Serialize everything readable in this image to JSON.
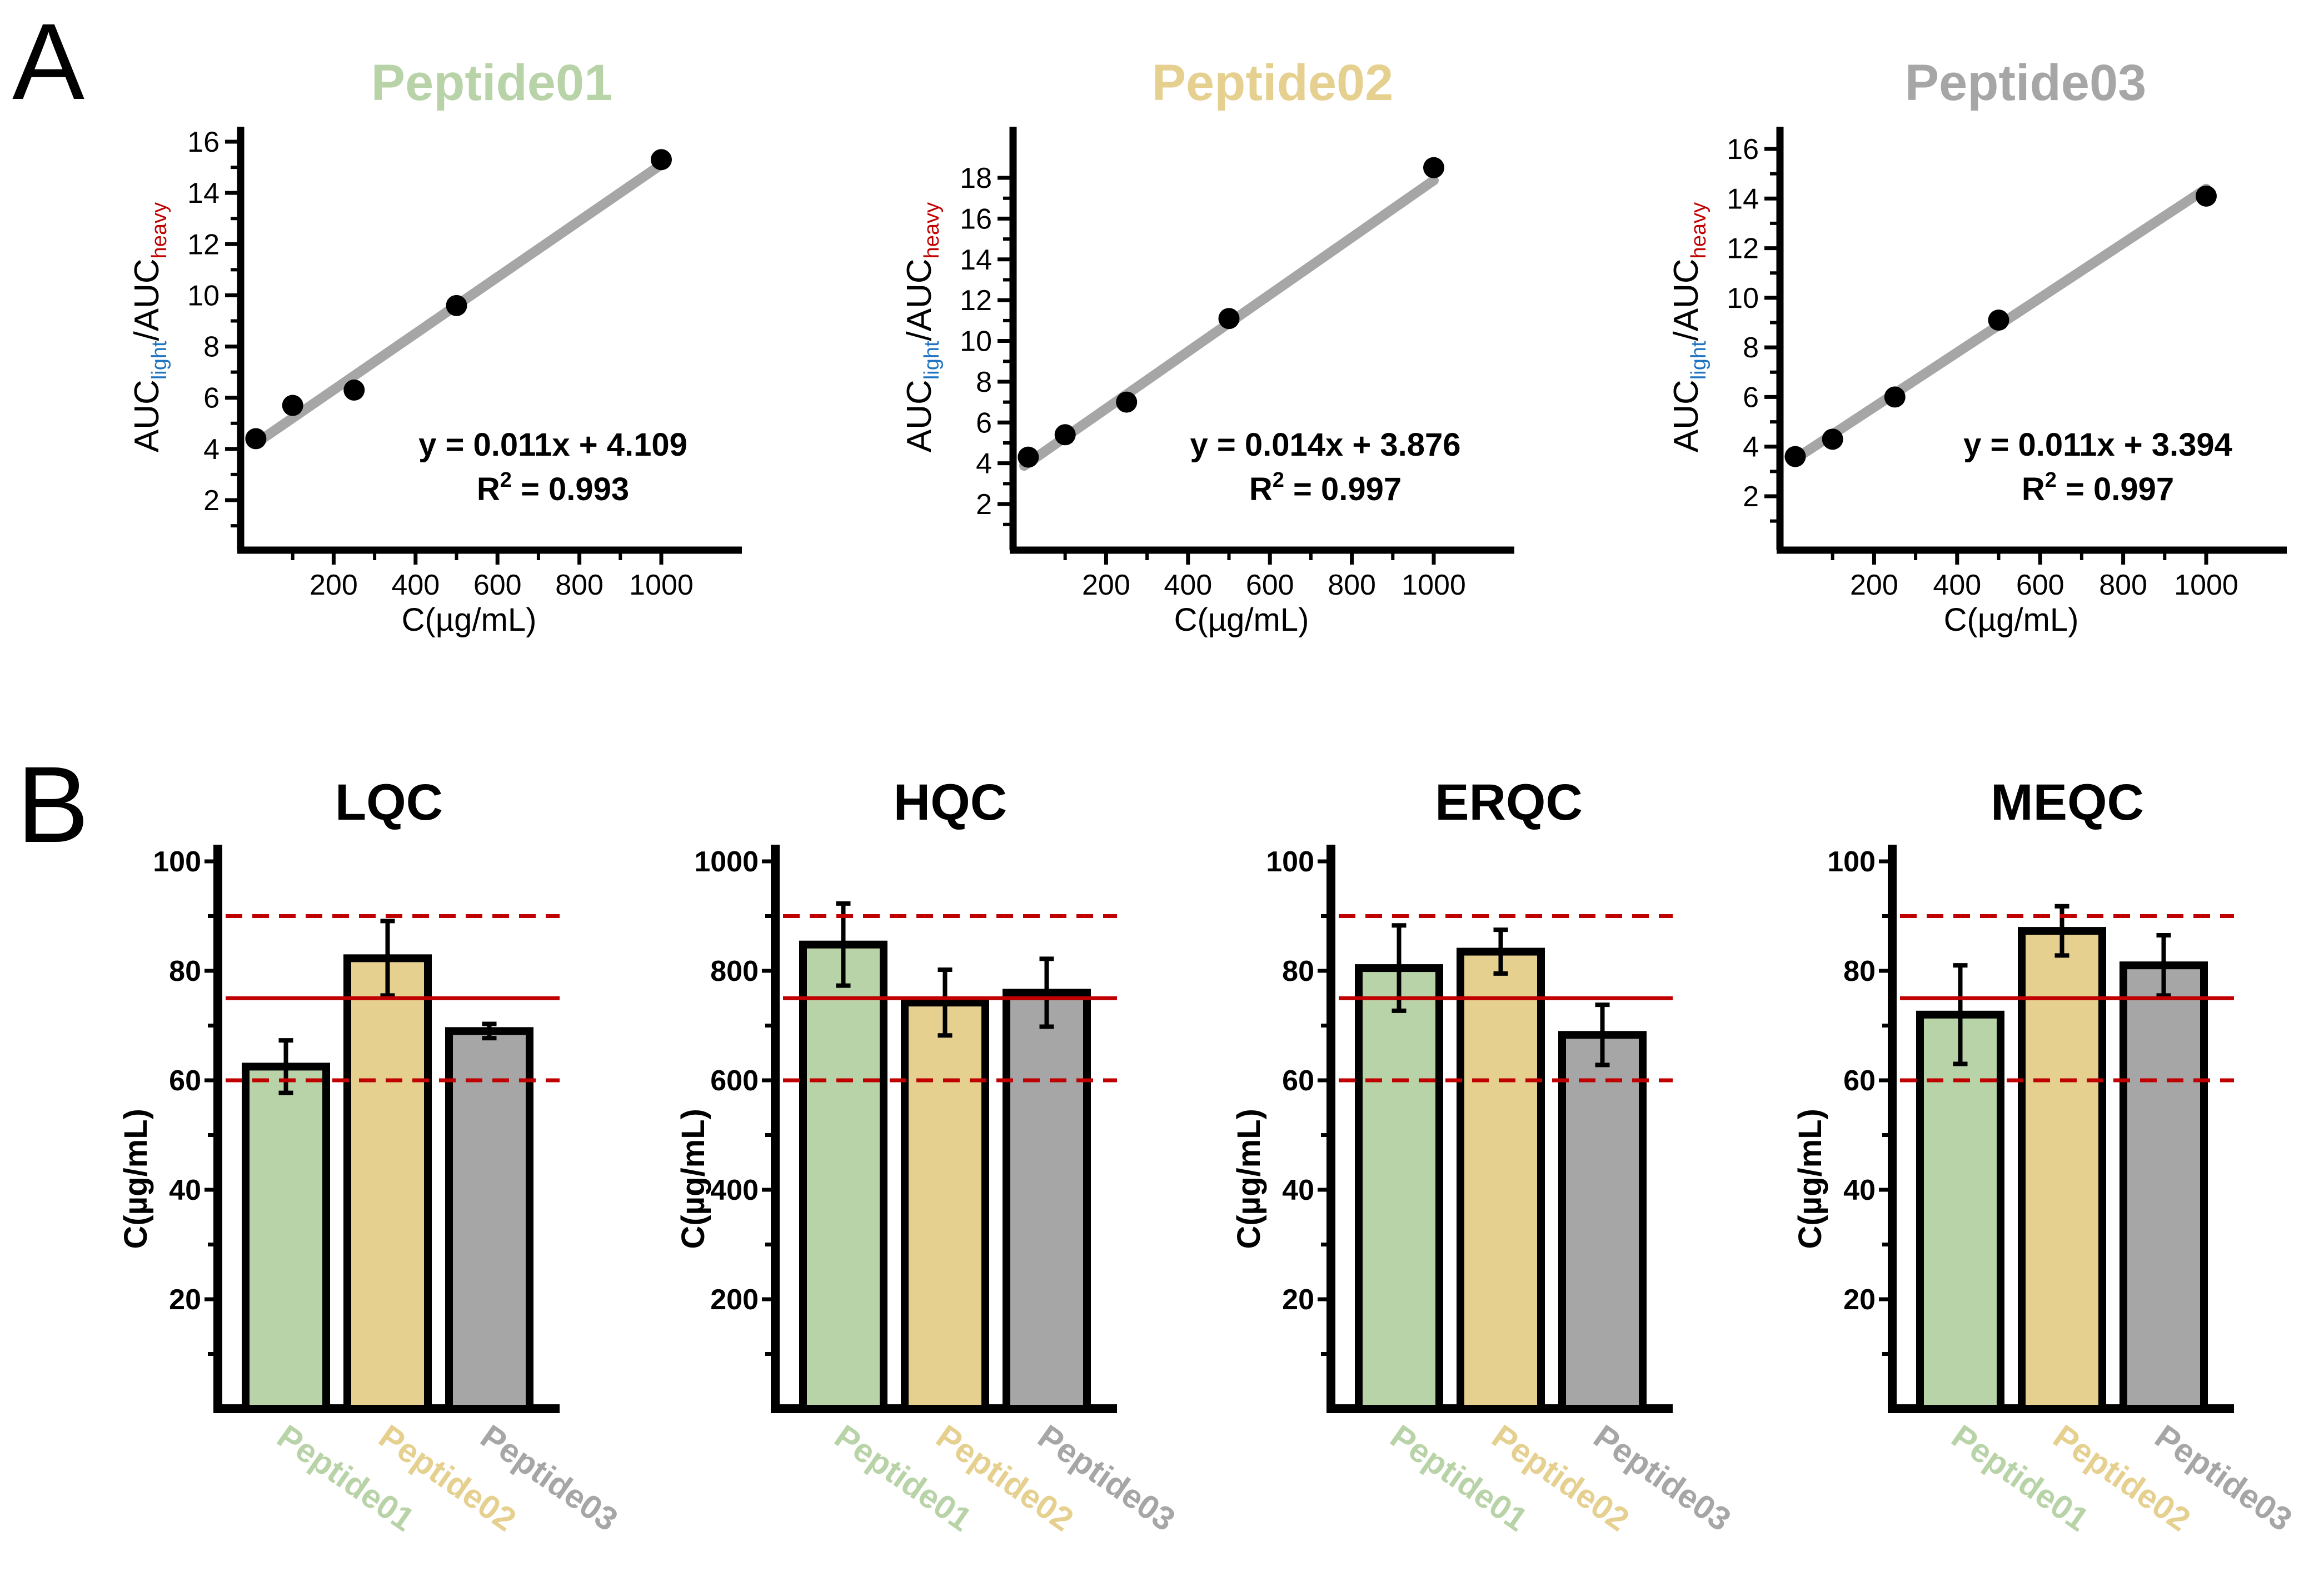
{
  "panel_labels": {
    "a": "A",
    "b": "B"
  },
  "colors": {
    "peptide01": "#b9d3a8",
    "peptide02": "#e5d08f",
    "peptide03": "#a6a6a6",
    "fit_line": "#a6a6a6",
    "limit_line": "#c00000",
    "axis": "#000000",
    "light_sub": "#1f74c2",
    "heavy_sub": "#c00000"
  },
  "chart_data": [
    {
      "type": "scatter",
      "title": "Peptide01",
      "title_color": "#b9d3a8",
      "xlabel": "C(µg/mL)",
      "ylabel": {
        "main": "AUC",
        "sub1": "light",
        "sep": "/AUC",
        "sub2": "heavy"
      },
      "xlim": [
        0,
        1150
      ],
      "ylim": [
        0,
        16.5
      ],
      "xticks": [
        200,
        400,
        600,
        800,
        1000
      ],
      "yticks": [
        2,
        4,
        6,
        8,
        10,
        12,
        14,
        16
      ],
      "x": [
        10,
        100,
        250,
        500,
        1000
      ],
      "y": [
        4.4,
        5.7,
        6.3,
        9.6,
        15.3
      ],
      "fit": {
        "slope": 0.011,
        "intercept": 4.109,
        "x_range": [
          10,
          1000
        ]
      },
      "equation": "y = 0.011x + 4.109",
      "r2_label": "R",
      "r2_sup": "2",
      "r2_value": " = 0.993"
    },
    {
      "type": "scatter",
      "title": "Peptide02",
      "title_color": "#e5d08f",
      "xlabel": "C(µg/mL)",
      "ylabel": {
        "main": "AUC",
        "sub1": "light",
        "sep": "/AUC",
        "sub2": "heavy"
      },
      "xlim": [
        0,
        1150
      ],
      "ylim": [
        0,
        20.5
      ],
      "xticks": [
        200,
        400,
        600,
        800,
        1000
      ],
      "yticks": [
        2,
        4,
        6,
        8,
        10,
        12,
        14,
        16,
        18
      ],
      "x": [
        10,
        100,
        250,
        500,
        1000
      ],
      "y": [
        4.3,
        5.4,
        7.0,
        11.1,
        18.5
      ],
      "fit": {
        "slope": 0.014,
        "intercept": 3.876,
        "x_range": [
          0,
          1000
        ]
      },
      "equation": "y = 0.014x + 3.876",
      "r2_label": "R",
      "r2_sup": "2",
      "r2_value": " = 0.997"
    },
    {
      "type": "scatter",
      "title": "Peptide03",
      "title_color": "#a6a6a6",
      "xlabel": "C(µg/mL)",
      "ylabel": {
        "main": "AUC",
        "sub1": "light",
        "sep": "/AUC",
        "sub2": "heavy"
      },
      "xlim": [
        0,
        1150
      ],
      "ylim": [
        0,
        16.5
      ],
      "xticks": [
        200,
        400,
        600,
        800,
        1000
      ],
      "yticks": [
        2,
        4,
        6,
        8,
        10,
        12,
        14,
        16
      ],
      "x": [
        10,
        100,
        250,
        500,
        1000
      ],
      "y": [
        3.6,
        4.3,
        6.0,
        9.1,
        14.1
      ],
      "fit": {
        "slope": 0.011,
        "intercept": 3.394,
        "x_range": [
          10,
          1000
        ]
      },
      "equation": "y = 0.011x + 3.394",
      "r2_label": "R",
      "r2_sup": "2",
      "r2_value": " = 0.997"
    },
    {
      "type": "bar",
      "title": "LQC",
      "ylabel": "C(µg/mL)",
      "ylim": [
        0,
        100
      ],
      "yticks": [
        20,
        40,
        60,
        80,
        100
      ],
      "categories": [
        "Peptide01",
        "Peptide02",
        "Peptide03"
      ],
      "values": [
        62.5,
        82.3,
        69.0
      ],
      "errors": [
        4.8,
        6.8,
        1.3
      ],
      "reference_lines": {
        "nominal": 75,
        "lower": 60,
        "upper": 90
      }
    },
    {
      "type": "bar",
      "title": "HQC",
      "ylabel": "C(µg/mL)",
      "ylim": [
        0,
        1000
      ],
      "yticks": [
        200,
        400,
        600,
        800,
        1000
      ],
      "categories": [
        "Peptide01",
        "Peptide02",
        "Peptide03"
      ],
      "values": [
        848,
        742,
        760
      ],
      "errors": [
        75,
        60,
        62
      ],
      "reference_lines": {
        "nominal": 750,
        "lower": 600,
        "upper": 900
      }
    },
    {
      "type": "bar",
      "title": "ERQC",
      "ylabel": "C(µg/mL)",
      "ylim": [
        0,
        100
      ],
      "yticks": [
        20,
        40,
        60,
        80,
        100
      ],
      "categories": [
        "Peptide01",
        "Peptide02",
        "Peptide03"
      ],
      "values": [
        80.5,
        83.5,
        68.3
      ],
      "errors": [
        7.8,
        4.0,
        5.5
      ],
      "reference_lines": {
        "nominal": 75,
        "lower": 60,
        "upper": 90
      }
    },
    {
      "type": "bar",
      "title": "MEQC",
      "ylabel": "C(µg/mL)",
      "ylim": [
        0,
        100
      ],
      "yticks": [
        20,
        40,
        60,
        80,
        100
      ],
      "categories": [
        "Peptide01",
        "Peptide02",
        "Peptide03"
      ],
      "values": [
        72.0,
        87.3,
        81.0
      ],
      "errors": [
        9.0,
        4.5,
        5.5
      ],
      "reference_lines": {
        "nominal": 75,
        "lower": 60,
        "upper": 90
      }
    }
  ]
}
